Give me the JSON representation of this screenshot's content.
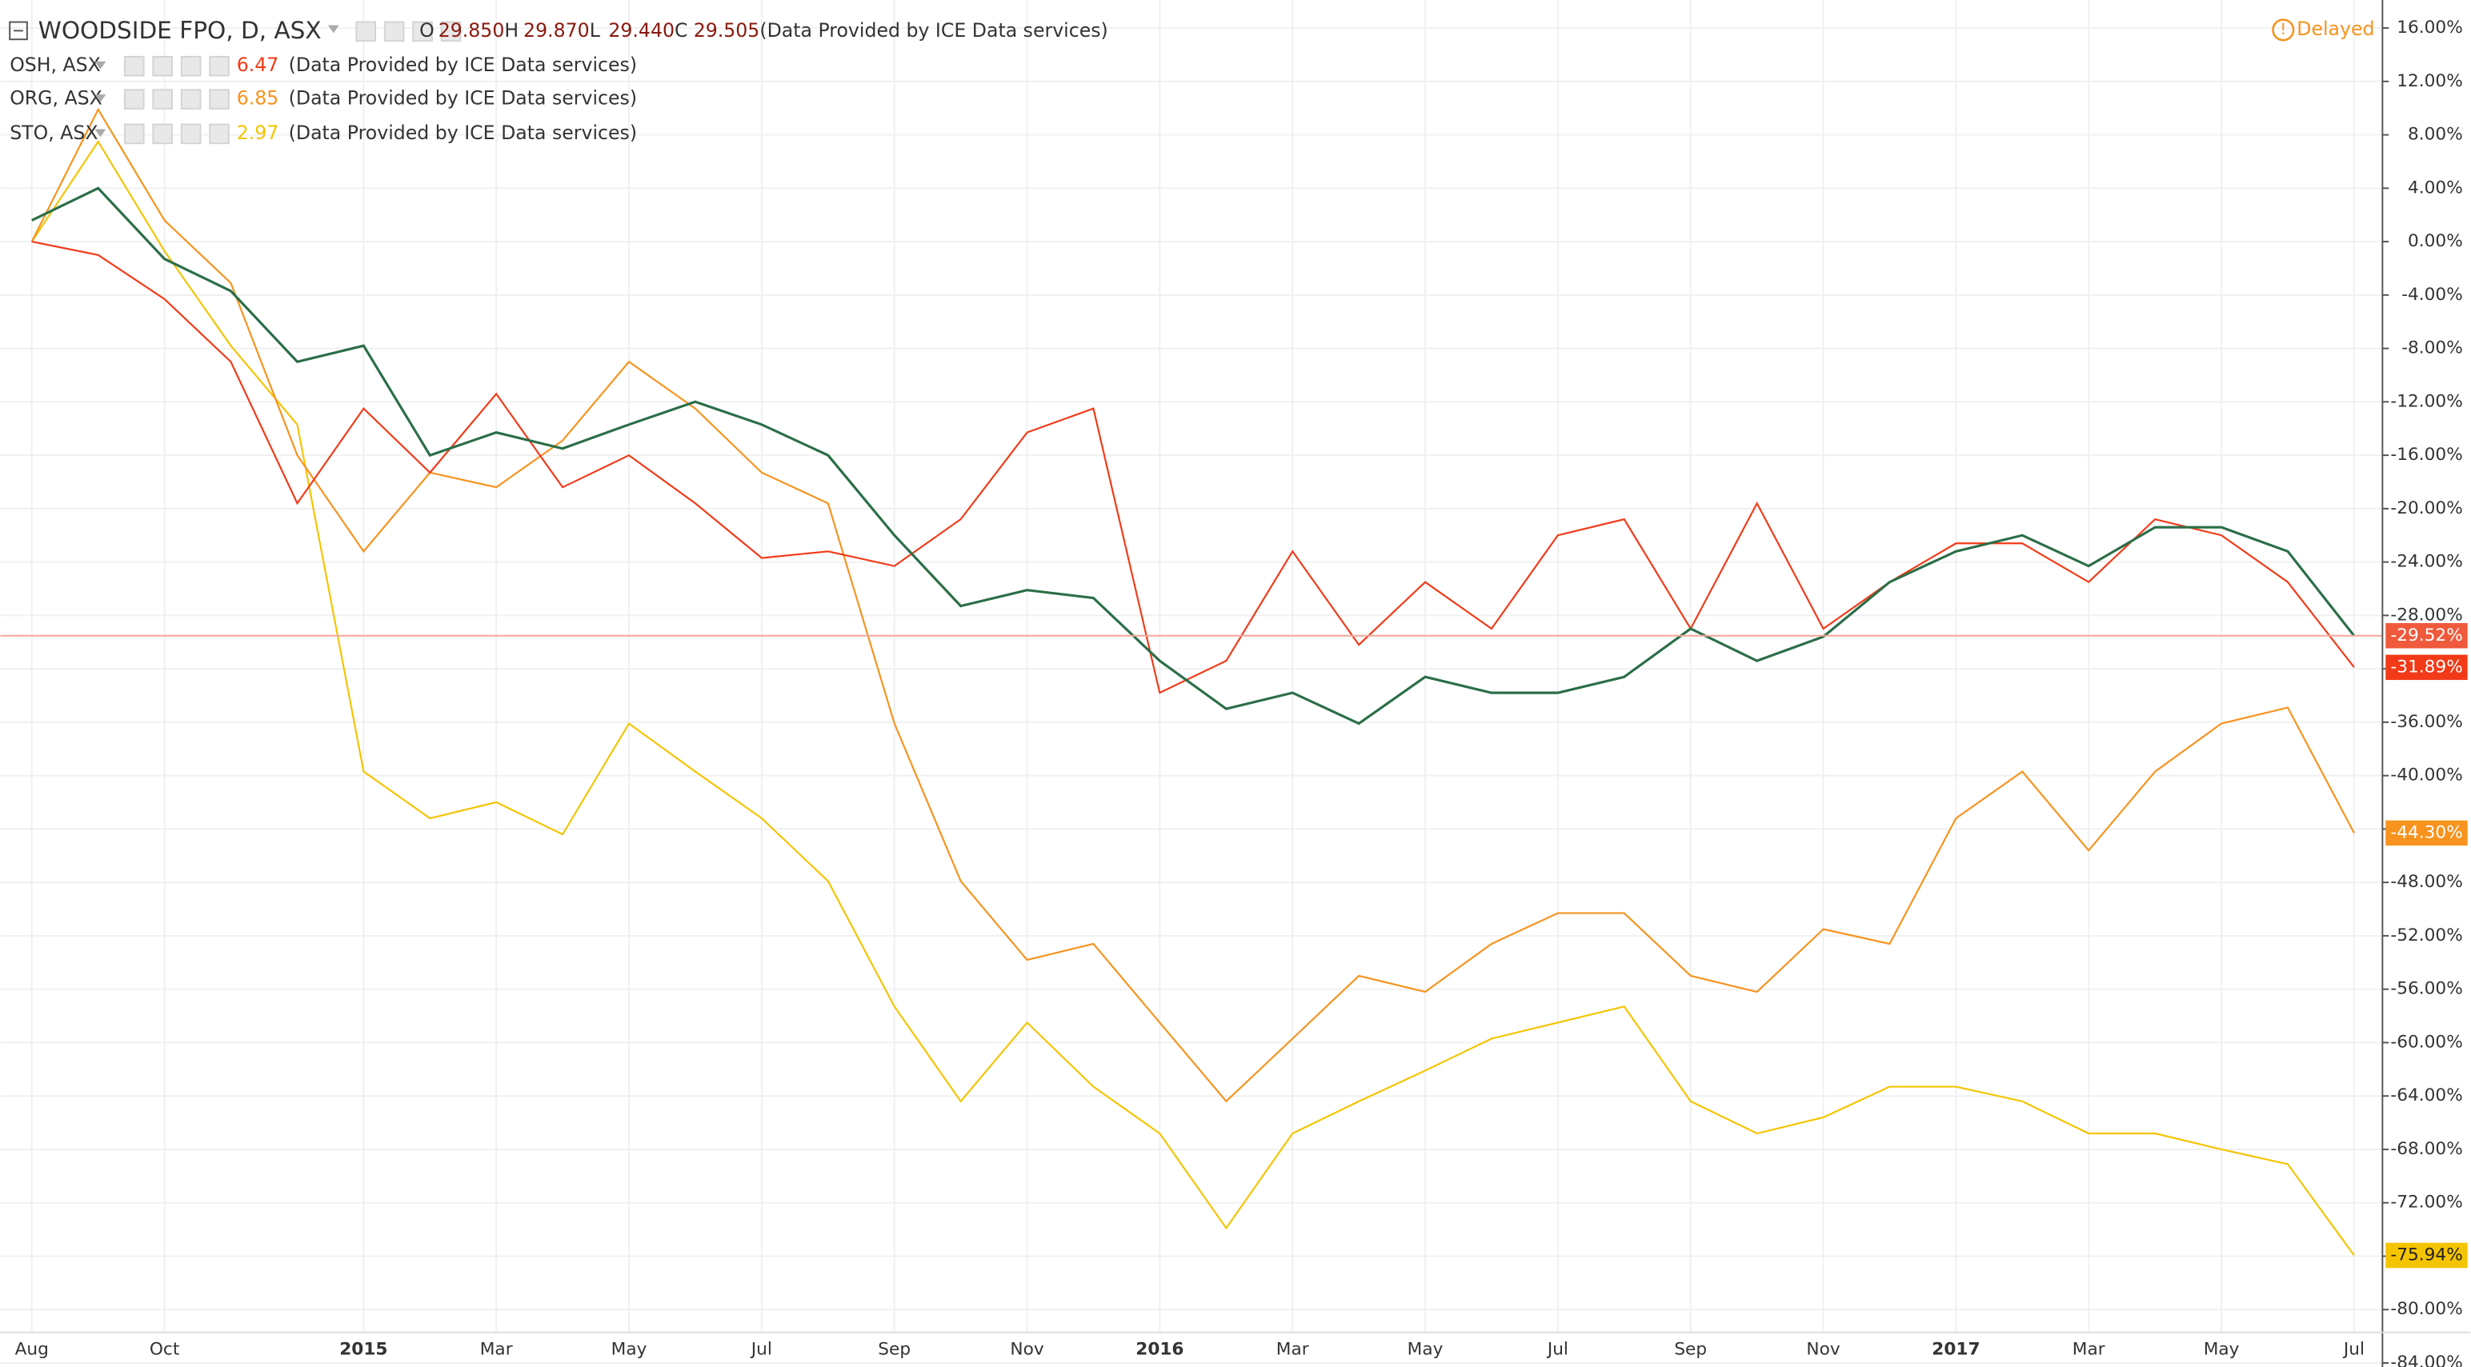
{
  "chart_data": {
    "type": "line",
    "delayed": "Delayed",
    "categories": [
      "Aug",
      null,
      "Oct",
      null,
      null,
      "2015",
      null,
      "Mar",
      null,
      "May",
      null,
      "Jul",
      null,
      "Sep",
      null,
      "Nov",
      null,
      "2016",
      null,
      "Mar",
      null,
      "May",
      null,
      "Jul",
      null,
      "Sep",
      null,
      "Nov",
      null,
      "2017",
      null,
      "Mar",
      null,
      "May",
      null,
      "Jul"
    ],
    "ylim": [
      -84.3,
      18.1
    ],
    "yticks": [
      {
        "value": 16,
        "label": "16.00%"
      },
      {
        "value": 12,
        "label": "12.00%"
      },
      {
        "value": 8,
        "label": "8.00%"
      },
      {
        "value": 4,
        "label": "4.00%"
      },
      {
        "value": 0,
        "label": "0.00%"
      },
      {
        "value": -4,
        "label": "-4.00%"
      },
      {
        "value": -8,
        "label": "-8.00%"
      },
      {
        "value": -12,
        "label": "-12.00%"
      },
      {
        "value": -16,
        "label": "-16.00%"
      },
      {
        "value": -20,
        "label": "-20.00%"
      },
      {
        "value": -24,
        "label": "-24.00%"
      },
      {
        "value": -28,
        "label": "-28.00%"
      },
      {
        "value": -32,
        "label": "-32.00%"
      },
      {
        "value": -36,
        "label": "-36.00%"
      },
      {
        "value": -40,
        "label": "-40.00%"
      },
      {
        "value": -44,
        "label": "-44.00%"
      },
      {
        "value": -48,
        "label": "-48.00%"
      },
      {
        "value": -52,
        "label": "-52.00%"
      },
      {
        "value": -56,
        "label": "-56.00%"
      },
      {
        "value": -60,
        "label": "-60.00%"
      },
      {
        "value": -64,
        "label": "-64.00%"
      },
      {
        "value": -68,
        "label": "-68.00%"
      },
      {
        "value": -72,
        "label": "-72.00%"
      },
      {
        "value": -76,
        "label": "-76.00%"
      },
      {
        "value": -80,
        "label": "-80.00%"
      },
      {
        "value": -84,
        "label": "-84.00%"
      }
    ],
    "grid": true,
    "series": [
      {
        "name": "WOODSIDE FPO, D, ASX",
        "color": "#2b6e47",
        "badge_color": "#ef5a3c",
        "ohlc": [
          {
            "key": "O",
            "text": "29.850"
          },
          {
            "key": "H",
            "text": "29.870"
          },
          {
            "key": "L",
            "text": "29.440"
          },
          {
            "key": "C",
            "text": "29.505"
          }
        ],
        "source": "(Data Provided by ICE Data services)",
        "last_label": "-29.52%",
        "values": [
          1.6,
          4,
          -1.3,
          -3.7,
          -9,
          -7.8,
          -16,
          -14.3,
          -15.5,
          -13.7,
          -12,
          -13.7,
          -16,
          -22,
          -27.3,
          -26.1,
          -26.7,
          -31.4,
          -35,
          -33.8,
          -36.1,
          -32.6,
          -33.8,
          -33.8,
          -32.6,
          -29,
          -31.4,
          -29.6,
          -25.5,
          -23.2,
          -22,
          -24.3,
          -21.4,
          -21.4,
          -23.2,
          -29.52
        ]
      },
      {
        "name": "OSH, ASX",
        "color": "#f23a18",
        "price": "6.47",
        "source": "(Data Provided by ICE Data services)",
        "last_label": "-31.89%",
        "values": [
          0,
          -1,
          -4.3,
          -9,
          -19.6,
          -12.5,
          -17.3,
          -11.4,
          -18.4,
          -16,
          -19.6,
          -23.7,
          -23.2,
          -24.3,
          -20.8,
          -14.3,
          -12.5,
          -33.8,
          -31.4,
          -23.2,
          -30.2,
          -25.5,
          -29,
          -22,
          -20.8,
          -29,
          -19.6,
          -29,
          -25.5,
          -22.6,
          -22.6,
          -25.5,
          -20.8,
          -22,
          -25.5,
          -31.89
        ]
      },
      {
        "name": "ORG, ASX",
        "color": "#f7931e",
        "price": "6.85",
        "source": "(Data Provided by ICE Data services)",
        "last_label": "-44.30%",
        "values": [
          0,
          9.9,
          1.6,
          -3.1,
          -16,
          -23.2,
          -17.3,
          -18.4,
          -14.9,
          -9,
          -12.5,
          -17.3,
          -19.6,
          -36.1,
          -47.9,
          -53.8,
          -52.6,
          -58.5,
          -64.4,
          -59.7,
          -55,
          -56.2,
          -52.6,
          -50.3,
          -50.3,
          -55,
          -56.2,
          -51.5,
          -52.6,
          -43.2,
          -39.7,
          -45.6,
          -39.7,
          -36.1,
          -34.9,
          -44.3
        ]
      },
      {
        "name": "STO, ASX",
        "color": "#f5c400",
        "price": "2.97",
        "source": "(Data Provided by ICE Data services)",
        "last_label": "-75.94%",
        "values": [
          0,
          7.5,
          -0.7,
          -7.8,
          -13.7,
          -39.7,
          -43.2,
          -42,
          -44.4,
          -36.1,
          -39.7,
          -43.2,
          -47.9,
          -57.3,
          -64.4,
          -58.5,
          -63.3,
          -66.8,
          -73.9,
          -66.8,
          -64.4,
          -62.1,
          -59.7,
          -58.5,
          -57.3,
          -64.4,
          -66.8,
          -65.6,
          -63.3,
          -63.3,
          -64.4,
          -66.8,
          -66.8,
          -68,
          -69.1,
          -75.94
        ]
      }
    ]
  }
}
